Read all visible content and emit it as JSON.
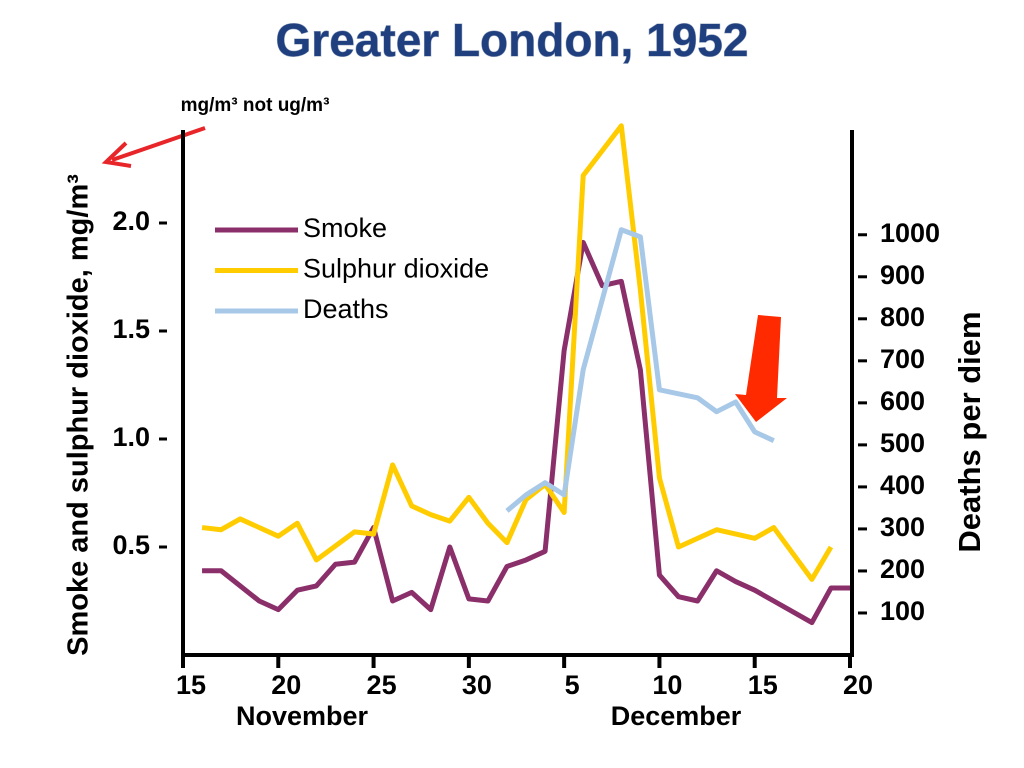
{
  "chart_data": {
    "type": "line",
    "title": "Greater London, 1952",
    "annotation": "mg/m³ not ug/m³",
    "y_label": "Smoke and sulphur dioxide, mg/m³",
    "y2_label": "Deaths per diem",
    "x_months": [
      "November",
      "December"
    ],
    "xlim": [
      "1952-11-15",
      "1952-12-20"
    ],
    "xticks": [
      {
        "value": "1952-11-15",
        "label": "15"
      },
      {
        "value": "1952-11-20",
        "label": "20"
      },
      {
        "value": "1952-11-25",
        "label": "25"
      },
      {
        "value": "1952-11-30",
        "label": "30"
      },
      {
        "value": "1952-12-05",
        "label": "5"
      },
      {
        "value": "1952-12-10",
        "label": "10"
      },
      {
        "value": "1952-12-15",
        "label": "15"
      },
      {
        "value": "1952-12-20",
        "label": "20"
      }
    ],
    "ylim": [
      0,
      2.5
    ],
    "yticks": [
      0.5,
      {
        "value": 1,
        "label": "1.0"
      },
      1.5,
      {
        "value": 2,
        "label": "2.0"
      }
    ],
    "y2lim": [
      0,
      1285
    ],
    "y2ticks": [
      100,
      200,
      300,
      400,
      500,
      600,
      700,
      800,
      900,
      1000
    ],
    "legend": "upper left",
    "series": [
      {
        "name": "Smoke",
        "color": "#8b2f6b",
        "x": [
          "1952-11-16",
          "1952-11-17",
          "1952-11-19",
          "1952-11-20",
          "1952-11-21",
          "1952-11-22",
          "1952-11-23",
          "1952-11-24",
          "1952-11-25",
          "1952-11-26",
          "1952-11-27",
          "1952-11-28",
          "1952-11-29",
          "1952-11-30",
          "1952-12-01",
          "1952-12-02",
          "1952-12-03",
          "1952-12-04",
          "1952-12-05",
          "1952-12-06",
          "1952-12-07",
          "1952-12-08",
          "1952-12-09",
          "1952-12-10",
          "1952-12-11",
          "1952-12-12",
          "1952-12-13",
          "1952-12-14",
          "1952-12-15",
          "1952-12-16",
          "1952-12-18",
          "1952-12-19",
          "1952-12-20"
        ],
        "values": [
          0.39,
          0.39,
          0.25,
          0.21,
          0.3,
          0.32,
          0.42,
          0.43,
          0.59,
          0.25,
          0.29,
          0.21,
          0.5,
          0.26,
          0.25,
          0.41,
          0.44,
          0.48,
          1.41,
          1.91,
          1.71,
          1.73,
          1.32,
          0.37,
          0.27,
          0.25,
          0.39,
          0.34,
          0.3,
          0.25,
          0.15,
          0.31,
          0.31
        ]
      },
      {
        "name": "Sulphur dioxide",
        "color": "#ffcc00",
        "x": [
          "1952-11-16",
          "1952-11-17",
          "1952-11-18",
          "1952-11-20",
          "1952-11-21",
          "1952-11-22",
          "1952-11-24",
          "1952-11-25",
          "1952-11-26",
          "1952-11-27",
          "1952-11-28",
          "1952-11-29",
          "1952-11-30",
          "1952-12-01",
          "1952-12-02",
          "1952-12-03",
          "1952-12-04",
          "1952-12-05",
          "1952-12-06",
          "1952-12-08",
          "1952-12-09",
          "1952-12-10",
          "1952-12-11",
          "1952-12-13",
          "1952-12-15",
          "1952-12-16",
          "1952-12-18",
          "1952-12-19"
        ],
        "values": [
          0.59,
          0.58,
          0.63,
          0.55,
          0.61,
          0.44,
          0.57,
          0.56,
          0.88,
          0.69,
          0.65,
          0.62,
          0.73,
          0.61,
          0.52,
          0.72,
          0.79,
          0.66,
          2.22,
          2.45,
          1.69,
          0.82,
          0.5,
          0.58,
          0.54,
          0.59,
          0.35,
          0.5
        ]
      },
      {
        "name": "Deaths",
        "color": "#a8c8e8",
        "axis": "y2",
        "x": [
          "1952-12-02",
          "1952-12-03",
          "1952-12-04",
          "1952-12-05",
          "1952-12-06",
          "1952-12-08",
          "1952-12-09",
          "1952-12-10",
          "1952-12-12",
          "1952-12-13",
          "1952-12-14",
          "1952-12-15",
          "1952-12-16"
        ],
        "values": [
          343,
          381,
          410,
          381,
          679,
          1012,
          995,
          631,
          612,
          579,
          602,
          531,
          510
        ]
      }
    ]
  }
}
